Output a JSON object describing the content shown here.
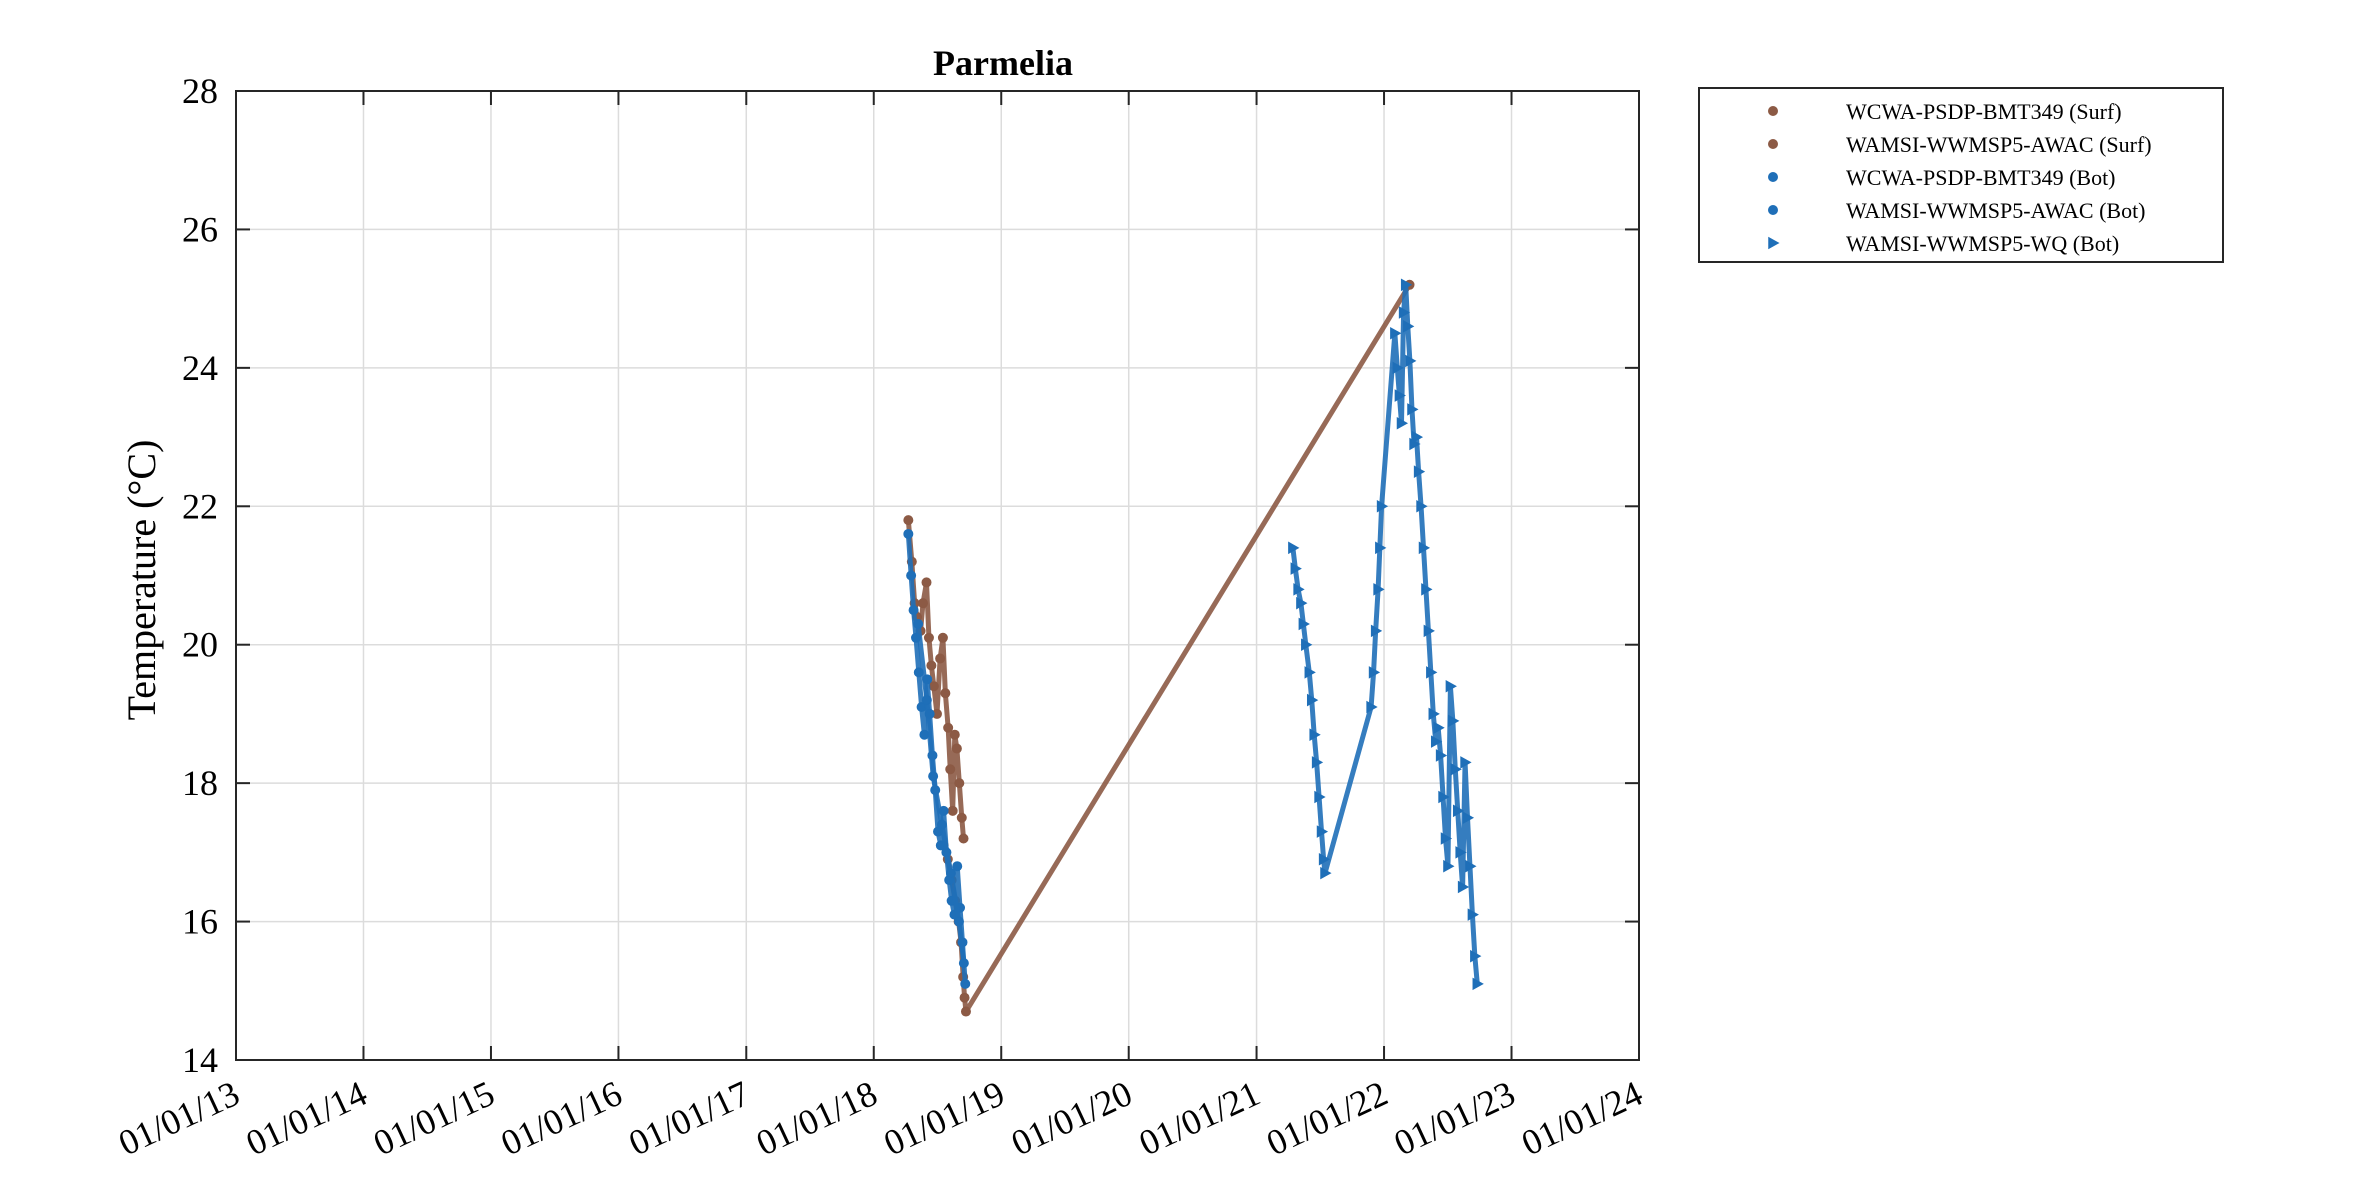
{
  "chart_data": {
    "type": "scatter",
    "title": "Parmelia",
    "xlabel": "",
    "ylabel": "Temperature (°C)",
    "xlim": [
      "2013-01-01",
      "2024-01-01"
    ],
    "ylim": [
      14,
      28
    ],
    "x_tick_labels": [
      "01/01/13",
      "01/01/14",
      "01/01/15",
      "01/01/16",
      "01/01/17",
      "01/01/18",
      "01/01/19",
      "01/01/20",
      "01/01/21",
      "01/01/22",
      "01/01/23",
      "01/01/24"
    ],
    "y_tick_labels": [
      "14",
      "16",
      "18",
      "20",
      "22",
      "24",
      "26",
      "28"
    ],
    "grid": true,
    "legend_position": "outside-top-right",
    "series": [
      {
        "name": "WCWA-PSDP-BMT349 (Surf)",
        "marker": "dot",
        "color": "#8c5a45",
        "points": [
          [
            "2018-04-10",
            21.8
          ],
          [
            "2018-04-20",
            21.2
          ],
          [
            "2018-04-28",
            20.6
          ],
          [
            "2018-05-05",
            20.4
          ],
          [
            "2018-05-15",
            20.2
          ],
          [
            "2018-05-22",
            20.6
          ],
          [
            "2018-06-01",
            20.9
          ],
          [
            "2018-06-08",
            20.1
          ],
          [
            "2018-06-15",
            19.7
          ],
          [
            "2018-06-22",
            19.4
          ],
          [
            "2018-07-01",
            19.0
          ],
          [
            "2018-07-10",
            19.8
          ],
          [
            "2018-07-18",
            20.1
          ],
          [
            "2018-07-25",
            19.3
          ],
          [
            "2018-08-02",
            18.8
          ],
          [
            "2018-08-08",
            18.2
          ],
          [
            "2018-08-15",
            17.6
          ],
          [
            "2018-08-21",
            18.7
          ],
          [
            "2018-08-27",
            18.5
          ],
          [
            "2018-09-03",
            18.0
          ],
          [
            "2018-09-10",
            17.5
          ],
          [
            "2018-09-15",
            17.2
          ]
        ]
      },
      {
        "name": "WAMSI-WWMSP5-AWAC (Surf)",
        "marker": "dot",
        "color": "#8c5a45",
        "points": [
          [
            "2018-07-20",
            17.1
          ],
          [
            "2018-08-01",
            16.9
          ],
          [
            "2018-08-12",
            16.6
          ],
          [
            "2018-08-22",
            16.3
          ],
          [
            "2018-09-01",
            16.0
          ],
          [
            "2018-09-08",
            15.7
          ],
          [
            "2018-09-14",
            15.2
          ],
          [
            "2018-09-18",
            14.9
          ],
          [
            "2018-09-22",
            14.7
          ],
          [
            "2022-03-15",
            25.2
          ]
        ]
      },
      {
        "name": "WCWA-PSDP-BMT349 (Bot)",
        "marker": "dot",
        "color": "#1f6fb8",
        "points": [
          [
            "2018-04-10",
            21.6
          ],
          [
            "2018-04-18",
            21.0
          ],
          [
            "2018-04-25",
            20.5
          ],
          [
            "2018-05-02",
            20.1
          ],
          [
            "2018-05-10",
            19.6
          ],
          [
            "2018-05-18",
            19.1
          ],
          [
            "2018-05-26",
            18.7
          ],
          [
            "2018-06-03",
            19.5
          ],
          [
            "2018-06-10",
            19.0
          ],
          [
            "2018-06-18",
            18.4
          ],
          [
            "2018-06-26",
            17.9
          ],
          [
            "2018-07-04",
            17.3
          ],
          [
            "2018-07-12",
            17.1
          ],
          [
            "2018-07-20",
            17.6
          ],
          [
            "2018-07-28",
            17.0
          ],
          [
            "2018-08-05",
            16.6
          ],
          [
            "2018-08-12",
            16.3
          ],
          [
            "2018-08-20",
            16.1
          ],
          [
            "2018-08-28",
            16.8
          ],
          [
            "2018-09-05",
            16.2
          ],
          [
            "2018-09-12",
            15.7
          ],
          [
            "2018-09-20",
            15.1
          ]
        ]
      },
      {
        "name": "WAMSI-WWMSP5-AWAC (Bot)",
        "marker": "dot",
        "color": "#1f6fb8",
        "points": [
          [
            "2018-05-08",
            20.3
          ],
          [
            "2018-06-02",
            19.2
          ],
          [
            "2018-06-20",
            18.1
          ],
          [
            "2018-07-15",
            17.4
          ],
          [
            "2018-08-10",
            16.7
          ],
          [
            "2018-09-02",
            16.0
          ],
          [
            "2018-09-16",
            15.4
          ]
        ]
      },
      {
        "name": "WAMSI-WWMSP5-WQ (Bot)",
        "marker": "triangle-right",
        "color": "#1f6fb8",
        "points": [
          [
            "2021-04-15",
            21.4
          ],
          [
            "2021-04-22",
            21.1
          ],
          [
            "2021-04-30",
            20.8
          ],
          [
            "2021-05-08",
            20.6
          ],
          [
            "2021-05-15",
            20.3
          ],
          [
            "2021-05-22",
            20.0
          ],
          [
            "2021-06-01",
            19.6
          ],
          [
            "2021-06-08",
            19.2
          ],
          [
            "2021-06-15",
            18.7
          ],
          [
            "2021-06-22",
            18.3
          ],
          [
            "2021-06-29",
            17.8
          ],
          [
            "2021-07-06",
            17.3
          ],
          [
            "2021-07-12",
            16.9
          ],
          [
            "2021-07-16",
            16.7
          ],
          [
            "2021-11-25",
            19.1
          ],
          [
            "2021-12-02",
            19.6
          ],
          [
            "2021-12-08",
            20.2
          ],
          [
            "2021-12-15",
            20.8
          ],
          [
            "2021-12-20",
            21.4
          ],
          [
            "2021-12-25",
            22.0
          ],
          [
            "2022-02-01",
            24.5
          ],
          [
            "2022-02-08",
            24.0
          ],
          [
            "2022-02-14",
            23.6
          ],
          [
            "2022-02-20",
            23.2
          ],
          [
            "2022-02-26",
            24.8
          ],
          [
            "2022-03-04",
            25.2
          ],
          [
            "2022-03-10",
            24.6
          ],
          [
            "2022-03-16",
            24.1
          ],
          [
            "2022-03-22",
            23.4
          ],
          [
            "2022-03-28",
            22.9
          ],
          [
            "2022-04-04",
            23.0
          ],
          [
            "2022-04-10",
            22.5
          ],
          [
            "2022-04-17",
            22.0
          ],
          [
            "2022-04-24",
            21.4
          ],
          [
            "2022-05-01",
            20.8
          ],
          [
            "2022-05-08",
            20.2
          ],
          [
            "2022-05-15",
            19.6
          ],
          [
            "2022-05-22",
            19.0
          ],
          [
            "2022-05-29",
            18.6
          ],
          [
            "2022-06-05",
            18.8
          ],
          [
            "2022-06-12",
            18.4
          ],
          [
            "2022-06-19",
            17.8
          ],
          [
            "2022-06-26",
            17.2
          ],
          [
            "2022-07-03",
            16.8
          ],
          [
            "2022-07-10",
            19.4
          ],
          [
            "2022-07-17",
            18.9
          ],
          [
            "2022-07-24",
            18.2
          ],
          [
            "2022-07-31",
            17.6
          ],
          [
            "2022-08-07",
            17.0
          ],
          [
            "2022-08-14",
            16.5
          ],
          [
            "2022-08-21",
            18.3
          ],
          [
            "2022-08-28",
            17.5
          ],
          [
            "2022-09-04",
            16.8
          ],
          [
            "2022-09-11",
            16.1
          ],
          [
            "2022-09-18",
            15.5
          ],
          [
            "2022-09-25",
            15.1
          ]
        ]
      }
    ]
  }
}
